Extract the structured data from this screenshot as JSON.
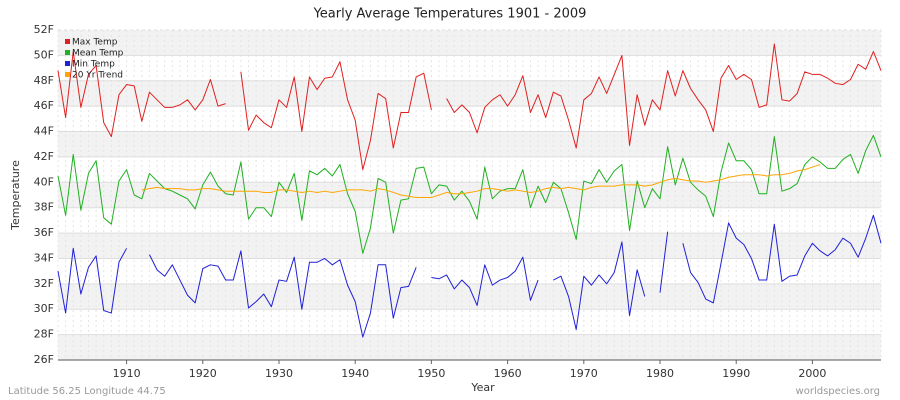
{
  "chart_data": {
    "type": "line",
    "title": "Yearly Average Temperatures 1901 - 2009",
    "x_label": "Year",
    "y_label": "Temperature",
    "caption": "Latitude 56.25 Longitude 44.75",
    "source": "worldspecies.org",
    "legend": "top-left",
    "grid": true,
    "xlim": [
      1901,
      2009
    ],
    "xticks": [
      1910,
      1920,
      1930,
      1940,
      1950,
      1960,
      1970,
      1980,
      1990,
      2000
    ],
    "ylim": [
      26,
      52
    ],
    "yticks": [
      {
        "value": 26,
        "label": "26F"
      },
      {
        "value": 28,
        "label": "28F"
      },
      {
        "value": 30,
        "label": "30F"
      },
      {
        "value": 32,
        "label": "32F"
      },
      {
        "value": 34,
        "label": "34F"
      },
      {
        "value": 36,
        "label": "36F"
      },
      {
        "value": 38,
        "label": "38F"
      },
      {
        "value": 40,
        "label": "40F"
      },
      {
        "value": 42,
        "label": "42F"
      },
      {
        "value": 44,
        "label": "44F"
      },
      {
        "value": 46,
        "label": "46F"
      },
      {
        "value": 48,
        "label": "48F"
      },
      {
        "value": 50,
        "label": "50F"
      },
      {
        "value": 52,
        "label": "52F"
      }
    ],
    "x": [
      1901,
      1902,
      1903,
      1904,
      1905,
      1906,
      1907,
      1908,
      1909,
      1910,
      1911,
      1912,
      1913,
      1914,
      1915,
      1916,
      1917,
      1918,
      1919,
      1920,
      1921,
      1922,
      1923,
      1924,
      1925,
      1926,
      1927,
      1928,
      1929,
      1930,
      1931,
      1932,
      1933,
      1934,
      1935,
      1936,
      1937,
      1938,
      1939,
      1940,
      1941,
      1942,
      1943,
      1944,
      1945,
      1946,
      1947,
      1948,
      1949,
      1950,
      1951,
      1952,
      1953,
      1954,
      1955,
      1956,
      1957,
      1958,
      1959,
      1960,
      1961,
      1962,
      1963,
      1964,
      1965,
      1966,
      1967,
      1968,
      1969,
      1970,
      1971,
      1972,
      1973,
      1974,
      1975,
      1976,
      1977,
      1978,
      1979,
      1980,
      1981,
      1982,
      1983,
      1984,
      1985,
      1986,
      1987,
      1988,
      1989,
      1990,
      1991,
      1992,
      1993,
      1994,
      1995,
      1996,
      1997,
      1998,
      1999,
      2000,
      2001,
      2002,
      2003,
      2004,
      2005,
      2006,
      2007,
      2008,
      2009
    ],
    "series": [
      {
        "name": "Max Temp",
        "color": "#e02020",
        "values": [
          48.8,
          45.1,
          50.3,
          45.9,
          48.5,
          49.2,
          44.7,
          43.6,
          46.9,
          47.7,
          47.6,
          44.8,
          47.1,
          46.5,
          45.9,
          45.9,
          46.1,
          46.5,
          45.7,
          46.5,
          48.1,
          46.0,
          46.2,
          null,
          48.7,
          44.1,
          45.3,
          44.7,
          44.3,
          46.5,
          45.9,
          48.3,
          44.0,
          48.3,
          47.3,
          48.2,
          48.3,
          49.5,
          46.5,
          44.9,
          41.0,
          43.3,
          47.0,
          46.6,
          42.7,
          45.5,
          45.5,
          48.3,
          48.6,
          45.7,
          null,
          46.6,
          45.5,
          46.1,
          45.5,
          43.9,
          45.9,
          46.5,
          46.9,
          46.0,
          46.9,
          48.4,
          45.5,
          46.9,
          45.1,
          47.1,
          46.8,
          44.9,
          42.7,
          46.5,
          47.0,
          48.3,
          47.0,
          48.5,
          50.0,
          42.9,
          46.9,
          44.5,
          46.5,
          45.7,
          48.8,
          46.8,
          48.8,
          47.4,
          46.5,
          45.7,
          44.0,
          48.2,
          49.2,
          48.1,
          48.5,
          48.1,
          45.9,
          46.1,
          50.9,
          46.5,
          46.4,
          47.0,
          48.7,
          48.5,
          48.5,
          48.2,
          47.8,
          47.7,
          48.1,
          49.3,
          48.9,
          50.3,
          48.8
        ]
      },
      {
        "name": "Mean Temp",
        "color": "#20b020",
        "values": [
          40.5,
          37.4,
          42.2,
          37.8,
          40.7,
          41.7,
          37.2,
          36.7,
          40.1,
          41.0,
          39.0,
          38.7,
          40.7,
          40.1,
          39.5,
          39.3,
          39.0,
          38.7,
          37.9,
          39.8,
          40.8,
          39.7,
          39.1,
          39.0,
          41.6,
          37.1,
          38.0,
          38.0,
          37.3,
          40.0,
          39.2,
          40.7,
          37.0,
          40.9,
          40.6,
          41.1,
          40.5,
          41.4,
          39.1,
          37.7,
          34.4,
          36.4,
          40.3,
          40.0,
          36.0,
          38.6,
          38.7,
          41.1,
          41.2,
          39.1,
          39.8,
          39.7,
          38.6,
          39.3,
          38.5,
          37.1,
          41.2,
          38.7,
          39.3,
          39.5,
          39.5,
          41.0,
          38.0,
          39.7,
          38.4,
          40.0,
          39.5,
          37.6,
          35.5,
          40.1,
          39.9,
          41.0,
          40.0,
          40.9,
          41.4,
          36.2,
          40.1,
          38.0,
          39.5,
          38.7,
          42.8,
          39.8,
          41.9,
          40.0,
          39.4,
          38.9,
          37.3,
          40.8,
          43.1,
          41.7,
          41.7,
          41.0,
          39.1,
          39.1,
          43.6,
          39.3,
          39.5,
          39.9,
          41.4,
          42.0,
          41.6,
          41.1,
          41.1,
          41.8,
          42.2,
          40.7,
          42.5,
          43.7,
          42.0
        ]
      },
      {
        "name": "Min Temp",
        "color": "#2020d8",
        "values": [
          33.0,
          29.7,
          34.8,
          31.2,
          33.3,
          34.2,
          29.9,
          29.7,
          33.7,
          34.8,
          null,
          null,
          34.3,
          33.1,
          32.6,
          33.5,
          32.3,
          31.1,
          30.5,
          33.2,
          33.5,
          33.4,
          32.3,
          32.3,
          34.6,
          30.1,
          30.6,
          31.2,
          30.2,
          32.3,
          32.2,
          34.1,
          30.0,
          33.7,
          33.7,
          34.0,
          33.5,
          33.9,
          31.9,
          30.6,
          27.8,
          29.7,
          33.5,
          33.5,
          29.3,
          31.7,
          31.8,
          33.3,
          null,
          32.5,
          32.4,
          32.7,
          31.6,
          32.3,
          31.7,
          30.3,
          33.5,
          31.9,
          32.3,
          32.5,
          33.0,
          34.1,
          30.7,
          32.3,
          null,
          32.3,
          32.6,
          31.0,
          28.4,
          32.6,
          31.9,
          32.7,
          32.0,
          32.9,
          35.3,
          29.5,
          33.1,
          31.0,
          null,
          31.3,
          36.1,
          null,
          35.2,
          32.9,
          32.1,
          30.8,
          30.5,
          33.6,
          36.8,
          35.6,
          35.1,
          34.0,
          32.3,
          32.3,
          36.7,
          32.2,
          32.6,
          32.7,
          34.2,
          35.2,
          34.6,
          34.2,
          34.7,
          35.6,
          35.2,
          34.1,
          35.6,
          37.4,
          35.2
        ]
      },
      {
        "name": "20 Yr Trend",
        "color": "#ffa500",
        "values": [
          null,
          null,
          null,
          null,
          null,
          null,
          null,
          null,
          null,
          null,
          null,
          39.4,
          39.5,
          39.6,
          39.5,
          39.5,
          39.5,
          39.4,
          39.4,
          39.5,
          39.5,
          39.4,
          39.3,
          39.3,
          39.3,
          39.3,
          39.3,
          39.2,
          39.2,
          39.4,
          39.4,
          39.3,
          39.2,
          39.3,
          39.2,
          39.3,
          39.2,
          39.3,
          39.4,
          39.4,
          39.4,
          39.3,
          39.5,
          39.4,
          39.2,
          39.0,
          38.9,
          38.8,
          38.8,
          38.8,
          39.0,
          39.2,
          39.1,
          39.1,
          39.2,
          39.3,
          39.5,
          39.5,
          39.4,
          39.3,
          39.4,
          39.3,
          39.2,
          39.3,
          39.5,
          39.6,
          39.5,
          39.6,
          39.5,
          39.4,
          39.6,
          39.7,
          39.7,
          39.7,
          39.8,
          39.8,
          39.8,
          39.7,
          39.8,
          40.0,
          40.2,
          40.3,
          40.2,
          40.1,
          40.1,
          40.0,
          40.1,
          40.2,
          40.4,
          40.5,
          40.6,
          40.6,
          40.6,
          40.5,
          40.6,
          40.6,
          40.7,
          40.9,
          41.0,
          41.2,
          41.4,
          null,
          null,
          null,
          null,
          null,
          null,
          null,
          null
        ]
      }
    ]
  }
}
